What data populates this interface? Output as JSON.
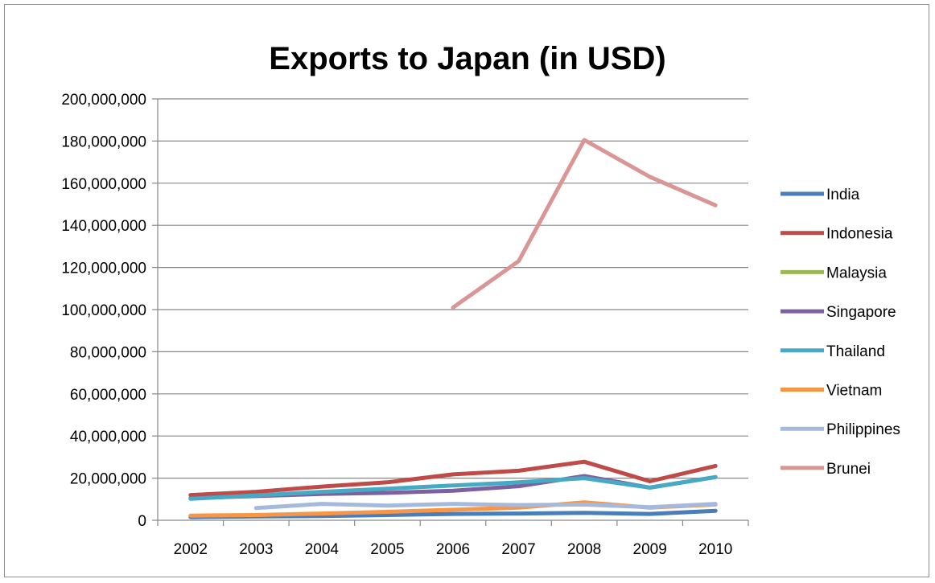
{
  "chart_data": {
    "type": "line",
    "title": "Exports to Japan (in USD)",
    "xlabel": "",
    "ylabel": "",
    "ylim": [
      0,
      200000000
    ],
    "y_ticks": [
      0,
      20000000,
      40000000,
      60000000,
      80000000,
      100000000,
      120000000,
      140000000,
      160000000,
      180000000,
      200000000
    ],
    "y_tick_labels": [
      "0",
      "20,000,000",
      "40,000,000",
      "60,000,000",
      "80,000,000",
      "100,000,000",
      "120,000,000",
      "140,000,000",
      "160,000,000",
      "180,000,000",
      "200,000,000"
    ],
    "categories": [
      "2002",
      "2003",
      "2004",
      "2005",
      "2006",
      "2007",
      "2008",
      "2009",
      "2010"
    ],
    "grid": "horizontal",
    "legend_position": "right",
    "series": [
      {
        "name": "India",
        "color": "#4a7ebb",
        "values": [
          1500000,
          1800000,
          2000000,
          2500000,
          3000000,
          3200000,
          3500000,
          3000000,
          4500000
        ]
      },
      {
        "name": "Indonesia",
        "color": "#be4b48",
        "values": [
          12000000,
          13500000,
          16000000,
          18000000,
          21800000,
          23500000,
          27800000,
          18500000,
          25800000
        ]
      },
      {
        "name": "Malaysia",
        "color": "#98b954",
        "values": [
          null,
          null,
          null,
          null,
          null,
          null,
          null,
          null,
          null
        ]
      },
      {
        "name": "Singapore",
        "color": "#7d60a0",
        "values": [
          10500000,
          11500000,
          12500000,
          13000000,
          14000000,
          16200000,
          21000000,
          15500000,
          20500000
        ]
      },
      {
        "name": "Thailand",
        "color": "#46aac5",
        "values": [
          10200000,
          11800000,
          13500000,
          15000000,
          16500000,
          18000000,
          20000000,
          15500000,
          20500000
        ]
      },
      {
        "name": "Vietnam",
        "color": "#f79646",
        "values": [
          2200000,
          2500000,
          3200000,
          4000000,
          5000000,
          6000000,
          8500000,
          6000000,
          7500000
        ]
      },
      {
        "name": "Philippines",
        "color": "#a5b9dd",
        "values": [
          null,
          5800000,
          7800000,
          7000000,
          7800000,
          7200000,
          7500000,
          6200000,
          7800000
        ]
      },
      {
        "name": "Brunei",
        "color": "#d99694",
        "values": [
          null,
          null,
          null,
          null,
          101000000,
          123000000,
          180500000,
          163000000,
          149500000
        ]
      }
    ]
  }
}
